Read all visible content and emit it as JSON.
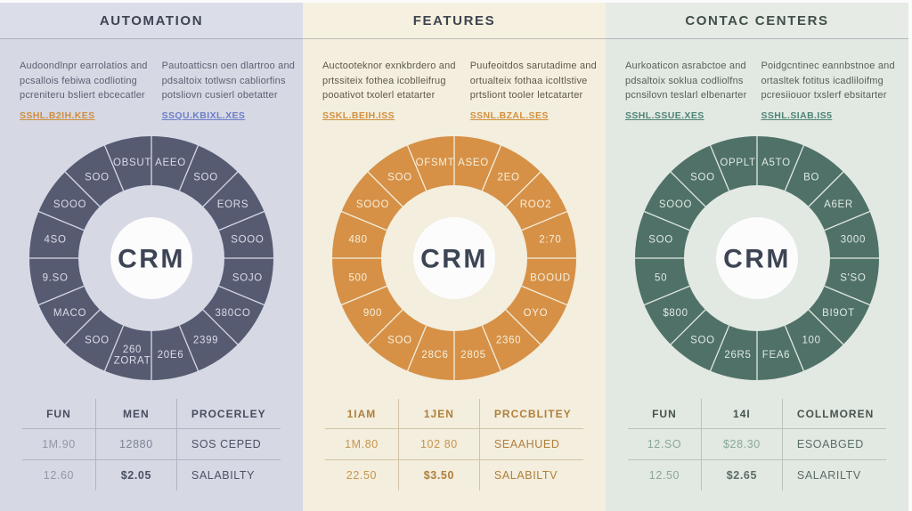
{
  "columns": [
    {
      "id": "automation",
      "title": "AUTOMATION",
      "theme": {
        "bg": "#d6d8e4",
        "header_bg": "#dbdde8",
        "accent": "#565b72",
        "label": "#dadce8",
        "title": "#3d4453",
        "text": "#5b6171",
        "grid": "#b2b5c2",
        "th": "#474d5e",
        "muted": "#9298a8",
        "mid": "#7d8494",
        "strong": "#4b5163"
      },
      "paragraphs": [
        {
          "lines": [
            "Audoondlnpr earrolatios and",
            "pcsallois febiwa codlioting",
            "pcreniteru bsliert ebcecatler"
          ],
          "link": "SSHL.B2IH.KES",
          "link_color": "#cf8d3c"
        },
        {
          "lines": [
            "Pautoatticsn oen dlartroo and",
            "pdsaltoix totlwsn cabliorfins",
            "potsliovn cusierl obetatter"
          ],
          "link": "SSQU.KBIXL.XES",
          "link_color": "#6d7ec9"
        }
      ],
      "chart": {
        "center_label": "CRM",
        "segments": [
          "AEEO",
          "SOO",
          "EORS",
          "SOOO",
          "SOJO",
          "380CO",
          "2399",
          "20E6",
          "260\nZORAT",
          "SOO",
          "MACO",
          "9.SO",
          "4SO",
          "SOOO",
          "SOO",
          "OBSUT"
        ]
      },
      "table": {
        "headers": [
          "FUN",
          "MEN",
          "PROCERLEY"
        ],
        "rows": [
          [
            "1M.90",
            "12880",
            "SOS CEPED"
          ],
          [
            "12.60",
            "$2.05",
            "SALABILTY"
          ]
        ]
      }
    },
    {
      "id": "features",
      "title": "FEATURES",
      "theme": {
        "bg": "#f3eedd",
        "header_bg": "#f5f0df",
        "accent": "#d69147",
        "label": "#f8efdb",
        "title": "#3e444e",
        "text": "#5e5849",
        "grid": "#d2c5a6",
        "th": "#b07f3d",
        "muted": "#c6954f",
        "mid": "#c6954f",
        "strong": "#b07f3d"
      },
      "paragraphs": [
        {
          "lines": [
            "Auctooteknor exnkbrdero and",
            "prtssiteix fothea icoblleifrug",
            "pooativot txolerl etatarter"
          ],
          "link": "SSKL.BEIH.ISS",
          "link_color": "#d29040"
        },
        {
          "lines": [
            "Puufeoitdos sarutadime and",
            "ortualteix fothaa icoltlstive",
            "prtsliont tooler letcatarter"
          ],
          "link": "SSNL.BZAL.SES",
          "link_color": "#d29040"
        }
      ],
      "chart": {
        "center_label": "CRM",
        "segments": [
          "ASEO",
          "2EO",
          "ROO2",
          "2:70",
          "BOOUD",
          "OYO",
          "2360",
          "2805",
          "28C6",
          "SOO",
          "900",
          "500",
          "480",
          "SOOO",
          "SOO",
          "OFSMT"
        ]
      },
      "table": {
        "headers": [
          "1IAM",
          "1JEN",
          "PRCCBLITEY"
        ],
        "rows": [
          [
            "1M.80",
            "102 80",
            "SEAAHUED"
          ],
          [
            "22.50",
            "$3.50",
            "SALABILTV"
          ]
        ]
      }
    },
    {
      "id": "contact-centers",
      "title": "CONTAC CENTERS",
      "theme": {
        "bg": "#e2e8e2",
        "header_bg": "#e6ebe5",
        "accent": "#4f7168",
        "label": "#e0e9e3",
        "title": "#414f49",
        "text": "#55605a",
        "grid": "#b7c4bd",
        "th": "#46544e",
        "muted": "#8aa79b",
        "mid": "#8aa79b",
        "strong": "#5a6e66"
      },
      "paragraphs": [
        {
          "lines": [
            "Aurkoaticon asrabctoe and",
            "pdsaltoix soklua codliolfns",
            "pcnsilovn teslarl elbenarter"
          ],
          "link": "SSHL.SSUE.XES",
          "link_color": "#4e8576"
        },
        {
          "lines": [
            "Poidgcntinec eannbstnoe and",
            "ortasltek fotitus icadliloifmg",
            "pcresiiouor txslerf ebsitarter"
          ],
          "link": "SSHL.SIAB.IS5",
          "link_color": "#4e8576"
        }
      ],
      "chart": {
        "center_label": "CRM",
        "segments": [
          "A5TO",
          "BO",
          "A6ER",
          "3000",
          "S'SO",
          "BI9OT",
          "100",
          "FEA6",
          "26R5",
          "SOO",
          "$800",
          "50",
          "SOO",
          "SOOO",
          "SOO",
          "OPPLT"
        ]
      },
      "table": {
        "headers": [
          "FUN",
          "14I",
          "COLLMOREN"
        ],
        "rows": [
          [
            "12.SO",
            "$28.30",
            "ESOABGED"
          ],
          [
            "12.50",
            "$2.65",
            "SALARILTV"
          ]
        ]
      }
    }
  ],
  "chart_data": [
    {
      "type": "pie",
      "title": "AUTOMATION",
      "center_label": "CRM",
      "labels": [
        "AEEO",
        "SOO",
        "EORS",
        "SOOO",
        "SOJO",
        "380CO",
        "2399",
        "20E6",
        "260 ZORAT",
        "SOO",
        "MACO",
        "9.SO",
        "4SO",
        "SOOO",
        "SOO",
        "OBSUT"
      ],
      "values": [
        6.25,
        6.25,
        6.25,
        6.25,
        6.25,
        6.25,
        6.25,
        6.25,
        6.25,
        6.25,
        6.25,
        6.25,
        6.25,
        6.25,
        6.25,
        6.25
      ],
      "ring_color": "#565b72",
      "legend_position": "none"
    },
    {
      "type": "pie",
      "title": "FEATURES",
      "center_label": "CRM",
      "labels": [
        "ASEO",
        "2EO",
        "ROO2",
        "2:70",
        "BOOUD",
        "OYO",
        "2360",
        "2805",
        "28C6",
        "SOO",
        "900",
        "500",
        "480",
        "SOOO",
        "SOO",
        "OFSMT"
      ],
      "values": [
        6.25,
        6.25,
        6.25,
        6.25,
        6.25,
        6.25,
        6.25,
        6.25,
        6.25,
        6.25,
        6.25,
        6.25,
        6.25,
        6.25,
        6.25,
        6.25
      ],
      "ring_color": "#d69147",
      "legend_position": "none"
    },
    {
      "type": "pie",
      "title": "CONTAC CENTERS",
      "center_label": "CRM",
      "labels": [
        "A5TO",
        "BO",
        "A6ER",
        "3000",
        "S'SO",
        "BI9OT",
        "100",
        "FEA6",
        "26R5",
        "SOO",
        "$800",
        "50",
        "SOO",
        "SOOO",
        "SOO",
        "OPPLT"
      ],
      "values": [
        6.25,
        6.25,
        6.25,
        6.25,
        6.25,
        6.25,
        6.25,
        6.25,
        6.25,
        6.25,
        6.25,
        6.25,
        6.25,
        6.25,
        6.25,
        6.25
      ],
      "ring_color": "#4f7168",
      "legend_position": "none"
    }
  ]
}
